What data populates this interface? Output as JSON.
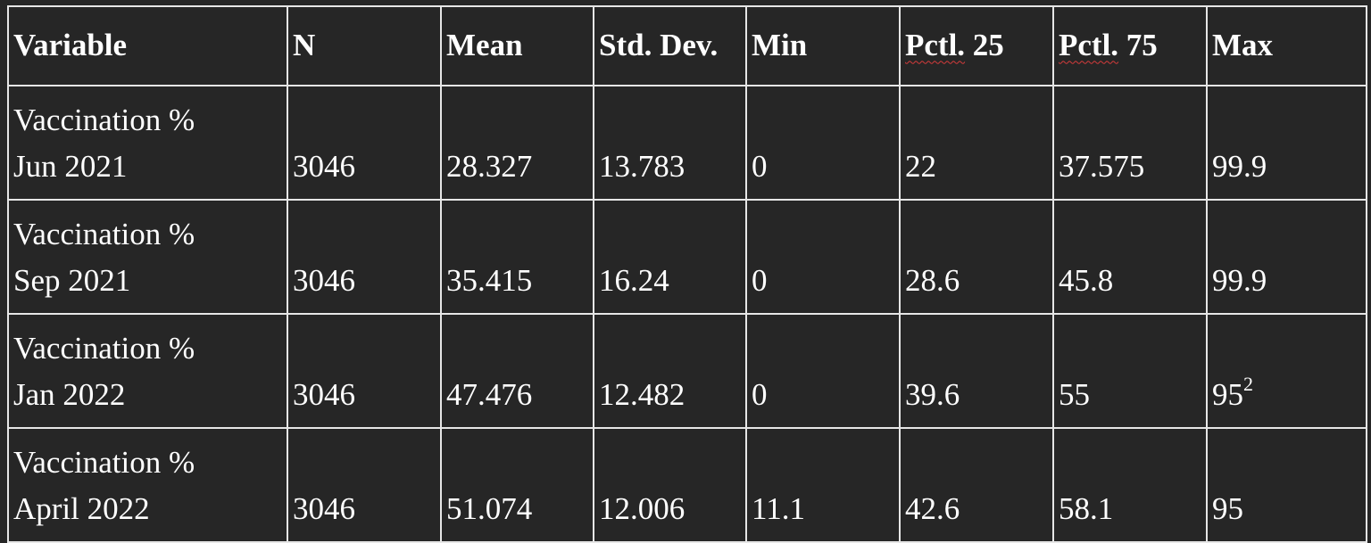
{
  "table": {
    "headers": {
      "variable": "Variable",
      "n": "N",
      "mean": "Mean",
      "std": "Std. Dev.",
      "min": "Min",
      "pctl25_word": "Pctl.",
      "pctl25_num": " 25",
      "pctl75_word": "Pctl.",
      "pctl75_num": " 75",
      "max": "Max"
    },
    "rows": [
      {
        "variable_line1": "Vaccination %",
        "variable_line2": "Jun 2021",
        "n": "3046",
        "mean": "28.327",
        "std": "13.783",
        "min": "0",
        "pctl25": "22",
        "pctl75": "37.575",
        "max": "99.9",
        "max_sup": ""
      },
      {
        "variable_line1": "Vaccination %",
        "variable_line2": "Sep 2021",
        "n": "3046",
        "mean": "35.415",
        "std": "16.24",
        "min": "0",
        "pctl25": "28.6",
        "pctl75": "45.8",
        "max": "99.9",
        "max_sup": ""
      },
      {
        "variable_line1": "Vaccination %",
        "variable_line2": "Jan 2022",
        "n": "3046",
        "mean": "47.476",
        "std": "12.482",
        "min": "0",
        "pctl25": "39.6",
        "pctl75": "55",
        "max": "95",
        "max_sup": "2"
      },
      {
        "variable_line1": "Vaccination %",
        "variable_line2": "April 2022",
        "n": "3046",
        "mean": "51.074",
        "std": "12.006",
        "min": "11.1",
        "pctl25": "42.6",
        "pctl75": "58.1",
        "max": "95",
        "max_sup": ""
      }
    ]
  }
}
